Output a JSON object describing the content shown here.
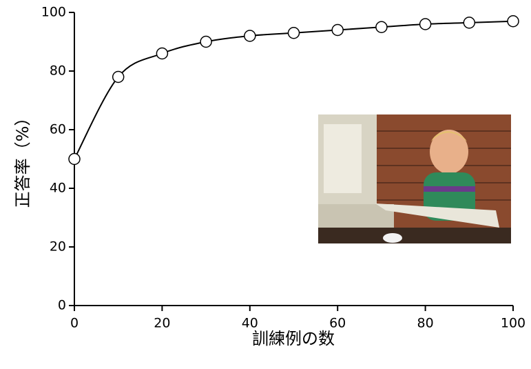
{
  "chart_data": {
    "type": "line",
    "x_label": "訓練例の数",
    "y_label": "正答率（%）",
    "x": [
      0,
      10,
      20,
      30,
      40,
      50,
      60,
      70,
      80,
      90,
      100
    ],
    "values": [
      50,
      78,
      86,
      90,
      92,
      93,
      94,
      95,
      96,
      96.5,
      97
    ],
    "color": "#000000",
    "markers": true,
    "smooth": true,
    "xlim": [
      0,
      100
    ],
    "xticks": [
      0,
      20,
      40,
      60,
      80,
      100
    ],
    "ylim": [
      0,
      100
    ],
    "yticks": [
      0,
      20,
      40,
      60,
      80,
      100
    ],
    "grid": false
  }
}
